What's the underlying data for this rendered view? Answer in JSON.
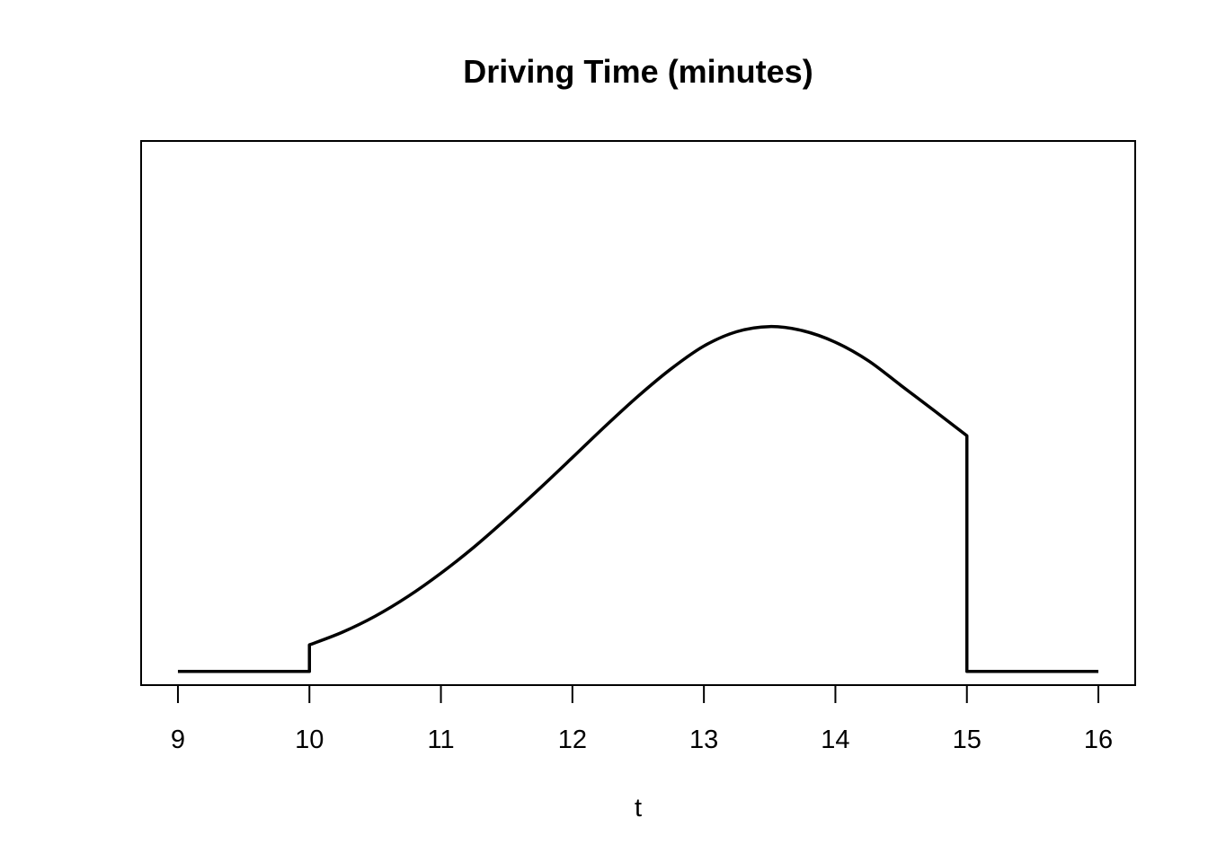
{
  "chart_data": {
    "type": "line",
    "title": "Driving Time (minutes)",
    "xlabel": "t",
    "ylabel": "",
    "xlim": [
      8.72,
      16.28
    ],
    "ylim": [
      -0.004,
      0.1555
    ],
    "x_ticks": [
      9,
      10,
      11,
      12,
      13,
      14,
      15,
      16
    ],
    "y_axis_shown": false,
    "grid": false,
    "legend": "none",
    "line_color": "#000000",
    "series": [
      {
        "x": [
          9,
          10,
          10,
          10.25,
          10.5,
          10.75,
          11,
          11.25,
          11.5,
          11.75,
          12,
          12.25,
          12.5,
          12.75,
          13,
          13.25,
          13.5,
          13.75,
          14,
          14.25,
          14.5,
          14.75,
          15,
          15,
          16
        ],
        "y": [
          0,
          0,
          0.0078,
          0.0115,
          0.0162,
          0.022,
          0.0288,
          0.0364,
          0.0448,
          0.0536,
          0.0627,
          0.0719,
          0.0807,
          0.0887,
          0.0954,
          0.0996,
          0.1011,
          0.0999,
          0.0965,
          0.0911,
          0.0838,
          0.0765,
          0.0691,
          0,
          0
        ]
      }
    ]
  }
}
